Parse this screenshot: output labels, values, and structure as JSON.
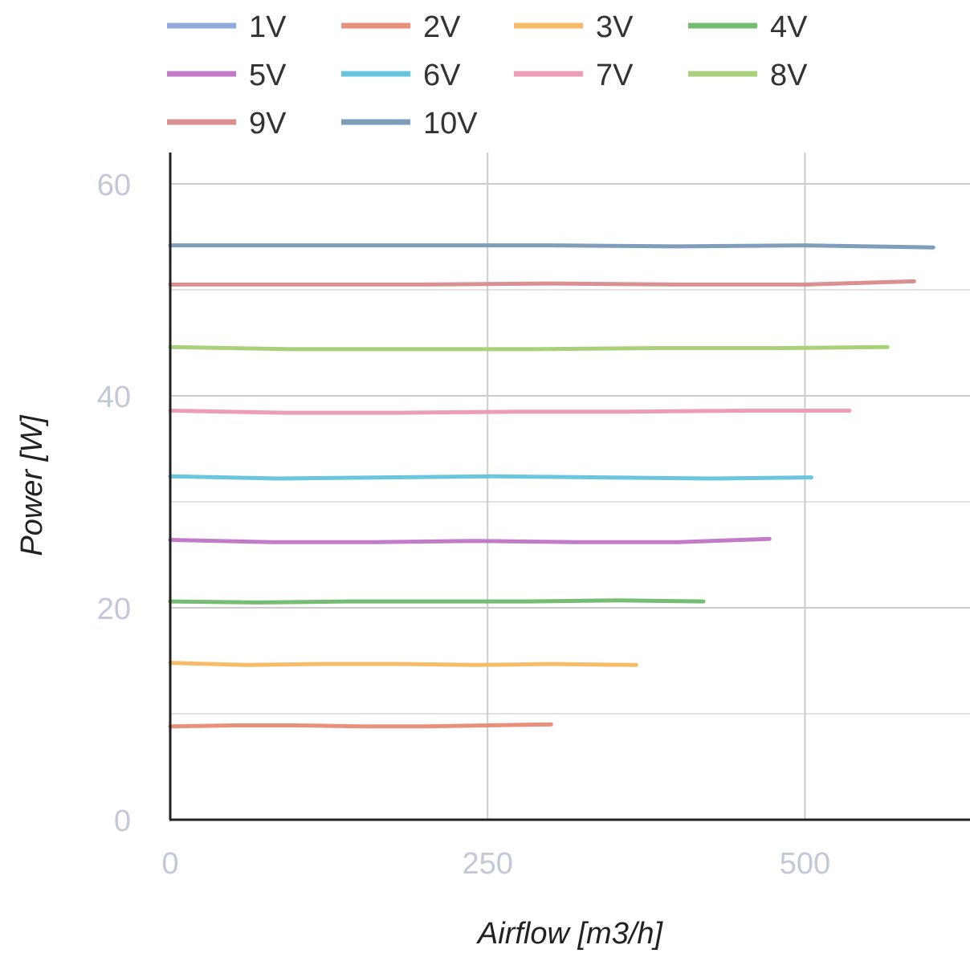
{
  "chart_data": {
    "type": "line",
    "xlabel": "Airflow [m3/h]",
    "ylabel": "Power [W]",
    "xlim": [
      0,
      630
    ],
    "ylim": [
      0,
      60
    ],
    "x_ticks": [
      "0",
      "250",
      "500"
    ],
    "y_ticks": [
      "0",
      "20",
      "40",
      "60"
    ],
    "grid": true,
    "legend_position": "top",
    "series": [
      {
        "name": "1V",
        "color": "#8faadc",
        "x": [],
        "y": []
      },
      {
        "name": "2V",
        "color": "#e8907a",
        "x": [
          0,
          50,
          100,
          150,
          200,
          250,
          300
        ],
        "y": [
          8.8,
          8.9,
          8.9,
          8.8,
          8.8,
          8.9,
          9.0
        ]
      },
      {
        "name": "3V",
        "color": "#f6bc67",
        "x": [
          0,
          60,
          120,
          180,
          240,
          300,
          367
        ],
        "y": [
          14.8,
          14.6,
          14.7,
          14.7,
          14.6,
          14.7,
          14.6
        ]
      },
      {
        "name": "4V",
        "color": "#74bd72",
        "x": [
          0,
          70,
          140,
          210,
          280,
          350,
          420
        ],
        "y": [
          20.6,
          20.5,
          20.6,
          20.6,
          20.6,
          20.7,
          20.6
        ]
      },
      {
        "name": "5V",
        "color": "#c27bc9",
        "x": [
          0,
          80,
          160,
          240,
          320,
          400,
          472
        ],
        "y": [
          26.4,
          26.2,
          26.2,
          26.3,
          26.2,
          26.2,
          26.5
        ]
      },
      {
        "name": "6V",
        "color": "#6ac5de",
        "x": [
          0,
          85,
          170,
          255,
          340,
          425,
          505
        ],
        "y": [
          32.4,
          32.2,
          32.3,
          32.4,
          32.3,
          32.2,
          32.3
        ]
      },
      {
        "name": "7V",
        "color": "#ec9eb8",
        "x": [
          0,
          90,
          180,
          270,
          360,
          450,
          535
        ],
        "y": [
          38.6,
          38.4,
          38.4,
          38.5,
          38.5,
          38.6,
          38.6
        ]
      },
      {
        "name": "8V",
        "color": "#a9d17b",
        "x": [
          0,
          95,
          190,
          285,
          380,
          475,
          565
        ],
        "y": [
          44.6,
          44.4,
          44.4,
          44.4,
          44.5,
          44.5,
          44.6
        ]
      },
      {
        "name": "9V",
        "color": "#d9908e",
        "x": [
          0,
          100,
          200,
          300,
          400,
          500,
          586
        ],
        "y": [
          50.5,
          50.5,
          50.5,
          50.6,
          50.5,
          50.5,
          50.8
        ]
      },
      {
        "name": "10V",
        "color": "#7f9dbd",
        "x": [
          0,
          100,
          200,
          300,
          400,
          500,
          601
        ],
        "y": [
          54.2,
          54.2,
          54.2,
          54.2,
          54.1,
          54.2,
          54.0
        ]
      }
    ]
  }
}
